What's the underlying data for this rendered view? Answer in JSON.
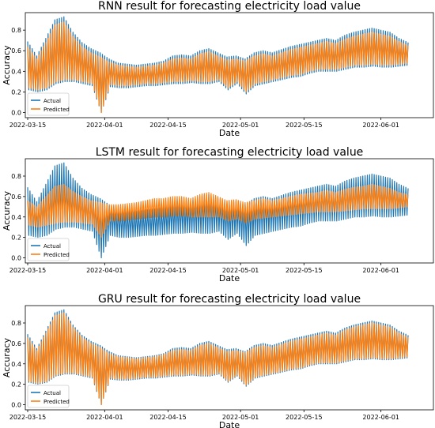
{
  "chart_data": [
    {
      "type": "line",
      "title": "RNN result for forecasting electricity load value",
      "xlabel": "Date",
      "ylabel": "Accuracy",
      "xticks": [
        "2022-03-15",
        "2022-04-01",
        "2022-04-15",
        "2022-05-01",
        "2022-05-15",
        "2022-06-01"
      ],
      "yticks": [
        "0.0",
        "0.2",
        "0.4",
        "0.6",
        "0.8"
      ],
      "x_range": [
        "2022-03-15",
        "2022-06-07"
      ],
      "ylim": [
        -0.05,
        0.97
      ],
      "legend_position": "lower-left",
      "grid": false,
      "series": [
        {
          "name": "Actual",
          "color": "#1f77b4",
          "x": [
            "2022-03-15",
            "2022-03-17",
            "2022-03-19",
            "2022-03-21",
            "2022-03-23",
            "2022-03-25",
            "2022-03-27",
            "2022-03-29",
            "2022-03-31",
            "2022-04-02",
            "2022-04-04",
            "2022-04-06",
            "2022-04-08",
            "2022-04-10",
            "2022-04-12",
            "2022-04-14",
            "2022-04-16",
            "2022-04-18",
            "2022-04-20",
            "2022-04-22",
            "2022-04-24",
            "2022-04-26",
            "2022-04-28",
            "2022-04-30",
            "2022-05-02",
            "2022-05-04",
            "2022-05-06",
            "2022-05-08",
            "2022-05-10",
            "2022-05-12",
            "2022-05-14",
            "2022-05-16",
            "2022-05-18",
            "2022-05-20",
            "2022-05-22",
            "2022-05-24",
            "2022-05-26",
            "2022-05-28",
            "2022-05-30",
            "2022-06-01",
            "2022-06-03",
            "2022-06-05",
            "2022-06-07"
          ],
          "upper": [
            0.69,
            0.55,
            0.72,
            0.9,
            0.93,
            0.78,
            0.68,
            0.62,
            0.58,
            0.52,
            0.48,
            0.47,
            0.46,
            0.47,
            0.48,
            0.5,
            0.55,
            0.56,
            0.55,
            0.6,
            0.62,
            0.58,
            0.54,
            0.55,
            0.52,
            0.58,
            0.6,
            0.58,
            0.61,
            0.64,
            0.66,
            0.68,
            0.7,
            0.72,
            0.7,
            0.75,
            0.78,
            0.8,
            0.82,
            0.8,
            0.78,
            0.72,
            0.68
          ],
          "lower": [
            0.22,
            0.2,
            0.22,
            0.28,
            0.3,
            0.3,
            0.28,
            0.26,
            0.0,
            0.25,
            0.24,
            0.24,
            0.25,
            0.26,
            0.26,
            0.27,
            0.28,
            0.28,
            0.29,
            0.28,
            0.28,
            0.3,
            0.22,
            0.28,
            0.18,
            0.26,
            0.28,
            0.3,
            0.32,
            0.34,
            0.35,
            0.38,
            0.4,
            0.4,
            0.4,
            0.42,
            0.44,
            0.44,
            0.45,
            0.44,
            0.44,
            0.45,
            0.46
          ]
        },
        {
          "name": "Predicted",
          "color": "#ff7f0e",
          "x": [
            "2022-03-15",
            "2022-03-17",
            "2022-03-19",
            "2022-03-21",
            "2022-03-23",
            "2022-03-25",
            "2022-03-27",
            "2022-03-29",
            "2022-03-31",
            "2022-04-02",
            "2022-04-04",
            "2022-04-06",
            "2022-04-08",
            "2022-04-10",
            "2022-04-12",
            "2022-04-14",
            "2022-04-16",
            "2022-04-18",
            "2022-04-20",
            "2022-04-22",
            "2022-04-24",
            "2022-04-26",
            "2022-04-28",
            "2022-04-30",
            "2022-05-02",
            "2022-05-04",
            "2022-05-06",
            "2022-05-08",
            "2022-05-10",
            "2022-05-12",
            "2022-05-14",
            "2022-05-16",
            "2022-05-18",
            "2022-05-20",
            "2022-05-22",
            "2022-05-24",
            "2022-05-26",
            "2022-05-28",
            "2022-05-30",
            "2022-06-01",
            "2022-06-03",
            "2022-06-05",
            "2022-06-07"
          ],
          "upper": [
            0.64,
            0.52,
            0.68,
            0.85,
            0.88,
            0.74,
            0.64,
            0.58,
            0.54,
            0.49,
            0.46,
            0.45,
            0.44,
            0.45,
            0.46,
            0.48,
            0.52,
            0.53,
            0.52,
            0.57,
            0.59,
            0.55,
            0.51,
            0.52,
            0.5,
            0.55,
            0.57,
            0.55,
            0.58,
            0.61,
            0.63,
            0.65,
            0.67,
            0.69,
            0.67,
            0.71,
            0.74,
            0.76,
            0.78,
            0.76,
            0.74,
            0.69,
            0.65
          ],
          "lower": [
            0.24,
            0.22,
            0.24,
            0.3,
            0.32,
            0.32,
            0.3,
            0.28,
            0.0,
            0.27,
            0.26,
            0.26,
            0.27,
            0.28,
            0.28,
            0.29,
            0.3,
            0.3,
            0.31,
            0.3,
            0.3,
            0.32,
            0.24,
            0.3,
            0.2,
            0.28,
            0.3,
            0.32,
            0.34,
            0.36,
            0.37,
            0.4,
            0.42,
            0.42,
            0.42,
            0.44,
            0.46,
            0.46,
            0.47,
            0.46,
            0.46,
            0.47,
            0.48
          ]
        }
      ]
    },
    {
      "type": "line",
      "title": "LSTM result for forecasting electricity load value",
      "xlabel": "Date",
      "ylabel": "Accuracy",
      "xticks": [
        "2022-03-15",
        "2022-04-01",
        "2022-04-15",
        "2022-05-01",
        "2022-05-15",
        "2022-06-01"
      ],
      "yticks": [
        "0.0",
        "0.2",
        "0.4",
        "0.6",
        "0.8"
      ],
      "x_range": [
        "2022-03-15",
        "2022-06-07"
      ],
      "ylim": [
        -0.05,
        0.97
      ],
      "legend_position": "lower-left",
      "grid": false,
      "series": [
        {
          "name": "Actual",
          "color": "#1f77b4",
          "x": [
            "2022-03-15",
            "2022-03-17",
            "2022-03-19",
            "2022-03-21",
            "2022-03-23",
            "2022-03-25",
            "2022-03-27",
            "2022-03-29",
            "2022-03-31",
            "2022-04-02",
            "2022-04-04",
            "2022-04-06",
            "2022-04-08",
            "2022-04-10",
            "2022-04-12",
            "2022-04-14",
            "2022-04-16",
            "2022-04-18",
            "2022-04-20",
            "2022-04-22",
            "2022-04-24",
            "2022-04-26",
            "2022-04-28",
            "2022-04-30",
            "2022-05-02",
            "2022-05-04",
            "2022-05-06",
            "2022-05-08",
            "2022-05-10",
            "2022-05-12",
            "2022-05-14",
            "2022-05-16",
            "2022-05-18",
            "2022-05-20",
            "2022-05-22",
            "2022-05-24",
            "2022-05-26",
            "2022-05-28",
            "2022-05-30",
            "2022-06-01",
            "2022-06-03",
            "2022-06-05",
            "2022-06-07"
          ],
          "upper": [
            0.69,
            0.55,
            0.72,
            0.9,
            0.93,
            0.78,
            0.68,
            0.62,
            0.58,
            0.52,
            0.48,
            0.47,
            0.46,
            0.47,
            0.48,
            0.5,
            0.55,
            0.56,
            0.55,
            0.6,
            0.62,
            0.58,
            0.54,
            0.55,
            0.52,
            0.58,
            0.6,
            0.58,
            0.61,
            0.64,
            0.66,
            0.68,
            0.7,
            0.72,
            0.7,
            0.75,
            0.78,
            0.8,
            0.82,
            0.8,
            0.78,
            0.72,
            0.68
          ],
          "lower": [
            0.22,
            0.2,
            0.22,
            0.28,
            0.3,
            0.3,
            0.28,
            0.26,
            0.0,
            0.22,
            0.2,
            0.2,
            0.21,
            0.22,
            0.22,
            0.23,
            0.24,
            0.24,
            0.25,
            0.24,
            0.24,
            0.26,
            0.18,
            0.24,
            0.12,
            0.22,
            0.24,
            0.26,
            0.28,
            0.3,
            0.31,
            0.34,
            0.36,
            0.36,
            0.36,
            0.38,
            0.4,
            0.4,
            0.41,
            0.4,
            0.4,
            0.41,
            0.42
          ]
        },
        {
          "name": "Predicted",
          "color": "#ff7f0e",
          "x": [
            "2022-03-15",
            "2022-03-17",
            "2022-03-19",
            "2022-03-21",
            "2022-03-23",
            "2022-03-25",
            "2022-03-27",
            "2022-03-29",
            "2022-03-31",
            "2022-04-02",
            "2022-04-04",
            "2022-04-06",
            "2022-04-08",
            "2022-04-10",
            "2022-04-12",
            "2022-04-14",
            "2022-04-16",
            "2022-04-18",
            "2022-04-20",
            "2022-04-22",
            "2022-04-24",
            "2022-04-26",
            "2022-04-28",
            "2022-04-30",
            "2022-05-02",
            "2022-05-04",
            "2022-05-06",
            "2022-05-08",
            "2022-05-10",
            "2022-05-12",
            "2022-05-14",
            "2022-05-16",
            "2022-05-18",
            "2022-05-20",
            "2022-05-22",
            "2022-05-24",
            "2022-05-26",
            "2022-05-28",
            "2022-05-30",
            "2022-06-01",
            "2022-06-03",
            "2022-06-05",
            "2022-06-07"
          ],
          "upper": [
            0.56,
            0.5,
            0.6,
            0.7,
            0.72,
            0.65,
            0.6,
            0.56,
            0.54,
            0.52,
            0.52,
            0.53,
            0.54,
            0.56,
            0.58,
            0.58,
            0.6,
            0.6,
            0.58,
            0.62,
            0.64,
            0.6,
            0.56,
            0.57,
            0.54,
            0.56,
            0.58,
            0.56,
            0.58,
            0.6,
            0.62,
            0.63,
            0.64,
            0.66,
            0.64,
            0.67,
            0.69,
            0.7,
            0.72,
            0.7,
            0.68,
            0.64,
            0.62
          ],
          "lower": [
            0.32,
            0.3,
            0.32,
            0.34,
            0.35,
            0.35,
            0.34,
            0.33,
            0.2,
            0.36,
            0.36,
            0.37,
            0.38,
            0.39,
            0.4,
            0.4,
            0.41,
            0.41,
            0.4,
            0.4,
            0.4,
            0.4,
            0.36,
            0.38,
            0.34,
            0.38,
            0.39,
            0.4,
            0.41,
            0.42,
            0.43,
            0.44,
            0.45,
            0.45,
            0.45,
            0.46,
            0.47,
            0.48,
            0.48,
            0.48,
            0.48,
            0.49,
            0.5
          ]
        }
      ]
    },
    {
      "type": "line",
      "title": "GRU result for forecasting electricity load value",
      "xlabel": "Date",
      "ylabel": "Accuracy",
      "xticks": [
        "2022-03-15",
        "2022-04-01",
        "2022-04-15",
        "2022-05-01",
        "2022-05-15",
        "2022-06-01"
      ],
      "yticks": [
        "0.0",
        "0.2",
        "0.4",
        "0.6",
        "0.8"
      ],
      "x_range": [
        "2022-03-15",
        "2022-06-07"
      ],
      "ylim": [
        -0.05,
        0.97
      ],
      "legend_position": "lower-left",
      "grid": false,
      "series": [
        {
          "name": "Actual",
          "color": "#1f77b4",
          "x": [
            "2022-03-15",
            "2022-03-17",
            "2022-03-19",
            "2022-03-21",
            "2022-03-23",
            "2022-03-25",
            "2022-03-27",
            "2022-03-29",
            "2022-03-31",
            "2022-04-02",
            "2022-04-04",
            "2022-04-06",
            "2022-04-08",
            "2022-04-10",
            "2022-04-12",
            "2022-04-14",
            "2022-04-16",
            "2022-04-18",
            "2022-04-20",
            "2022-04-22",
            "2022-04-24",
            "2022-04-26",
            "2022-04-28",
            "2022-04-30",
            "2022-05-02",
            "2022-05-04",
            "2022-05-06",
            "2022-05-08",
            "2022-05-10",
            "2022-05-12",
            "2022-05-14",
            "2022-05-16",
            "2022-05-18",
            "2022-05-20",
            "2022-05-22",
            "2022-05-24",
            "2022-05-26",
            "2022-05-28",
            "2022-05-30",
            "2022-06-01",
            "2022-06-03",
            "2022-06-05",
            "2022-06-07"
          ],
          "upper": [
            0.69,
            0.55,
            0.72,
            0.9,
            0.93,
            0.78,
            0.68,
            0.62,
            0.58,
            0.52,
            0.48,
            0.47,
            0.46,
            0.47,
            0.48,
            0.5,
            0.55,
            0.56,
            0.55,
            0.6,
            0.62,
            0.58,
            0.54,
            0.55,
            0.52,
            0.58,
            0.6,
            0.58,
            0.61,
            0.64,
            0.66,
            0.68,
            0.7,
            0.72,
            0.7,
            0.75,
            0.78,
            0.8,
            0.82,
            0.8,
            0.78,
            0.72,
            0.68
          ],
          "lower": [
            0.22,
            0.2,
            0.22,
            0.28,
            0.3,
            0.3,
            0.28,
            0.26,
            0.0,
            0.25,
            0.24,
            0.24,
            0.25,
            0.26,
            0.26,
            0.27,
            0.28,
            0.28,
            0.29,
            0.28,
            0.28,
            0.3,
            0.22,
            0.28,
            0.18,
            0.26,
            0.28,
            0.3,
            0.32,
            0.34,
            0.35,
            0.38,
            0.4,
            0.4,
            0.4,
            0.42,
            0.44,
            0.44,
            0.45,
            0.44,
            0.44,
            0.45,
            0.46
          ]
        },
        {
          "name": "Predicted",
          "color": "#ff7f0e",
          "x": [
            "2022-03-15",
            "2022-03-17",
            "2022-03-19",
            "2022-03-21",
            "2022-03-23",
            "2022-03-25",
            "2022-03-27",
            "2022-03-29",
            "2022-03-31",
            "2022-04-02",
            "2022-04-04",
            "2022-04-06",
            "2022-04-08",
            "2022-04-10",
            "2022-04-12",
            "2022-04-14",
            "2022-04-16",
            "2022-04-18",
            "2022-04-20",
            "2022-04-22",
            "2022-04-24",
            "2022-04-26",
            "2022-04-28",
            "2022-04-30",
            "2022-05-02",
            "2022-05-04",
            "2022-05-06",
            "2022-05-08",
            "2022-05-10",
            "2022-05-12",
            "2022-05-14",
            "2022-05-16",
            "2022-05-18",
            "2022-05-20",
            "2022-05-22",
            "2022-05-24",
            "2022-05-26",
            "2022-05-28",
            "2022-05-30",
            "2022-06-01",
            "2022-06-03",
            "2022-06-05",
            "2022-06-07"
          ],
          "upper": [
            0.66,
            0.53,
            0.7,
            0.87,
            0.9,
            0.76,
            0.66,
            0.6,
            0.56,
            0.5,
            0.47,
            0.46,
            0.45,
            0.46,
            0.47,
            0.49,
            0.53,
            0.54,
            0.53,
            0.58,
            0.6,
            0.56,
            0.52,
            0.53,
            0.51,
            0.56,
            0.58,
            0.56,
            0.59,
            0.62,
            0.64,
            0.66,
            0.68,
            0.7,
            0.68,
            0.73,
            0.76,
            0.78,
            0.8,
            0.78,
            0.76,
            0.7,
            0.66
          ],
          "lower": [
            0.23,
            0.21,
            0.23,
            0.29,
            0.31,
            0.31,
            0.29,
            0.27,
            0.0,
            0.26,
            0.25,
            0.25,
            0.26,
            0.27,
            0.27,
            0.28,
            0.29,
            0.29,
            0.3,
            0.29,
            0.29,
            0.31,
            0.23,
            0.29,
            0.19,
            0.27,
            0.29,
            0.31,
            0.33,
            0.35,
            0.36,
            0.39,
            0.41,
            0.41,
            0.41,
            0.43,
            0.45,
            0.45,
            0.46,
            0.45,
            0.45,
            0.46,
            0.47
          ]
        }
      ]
    }
  ]
}
